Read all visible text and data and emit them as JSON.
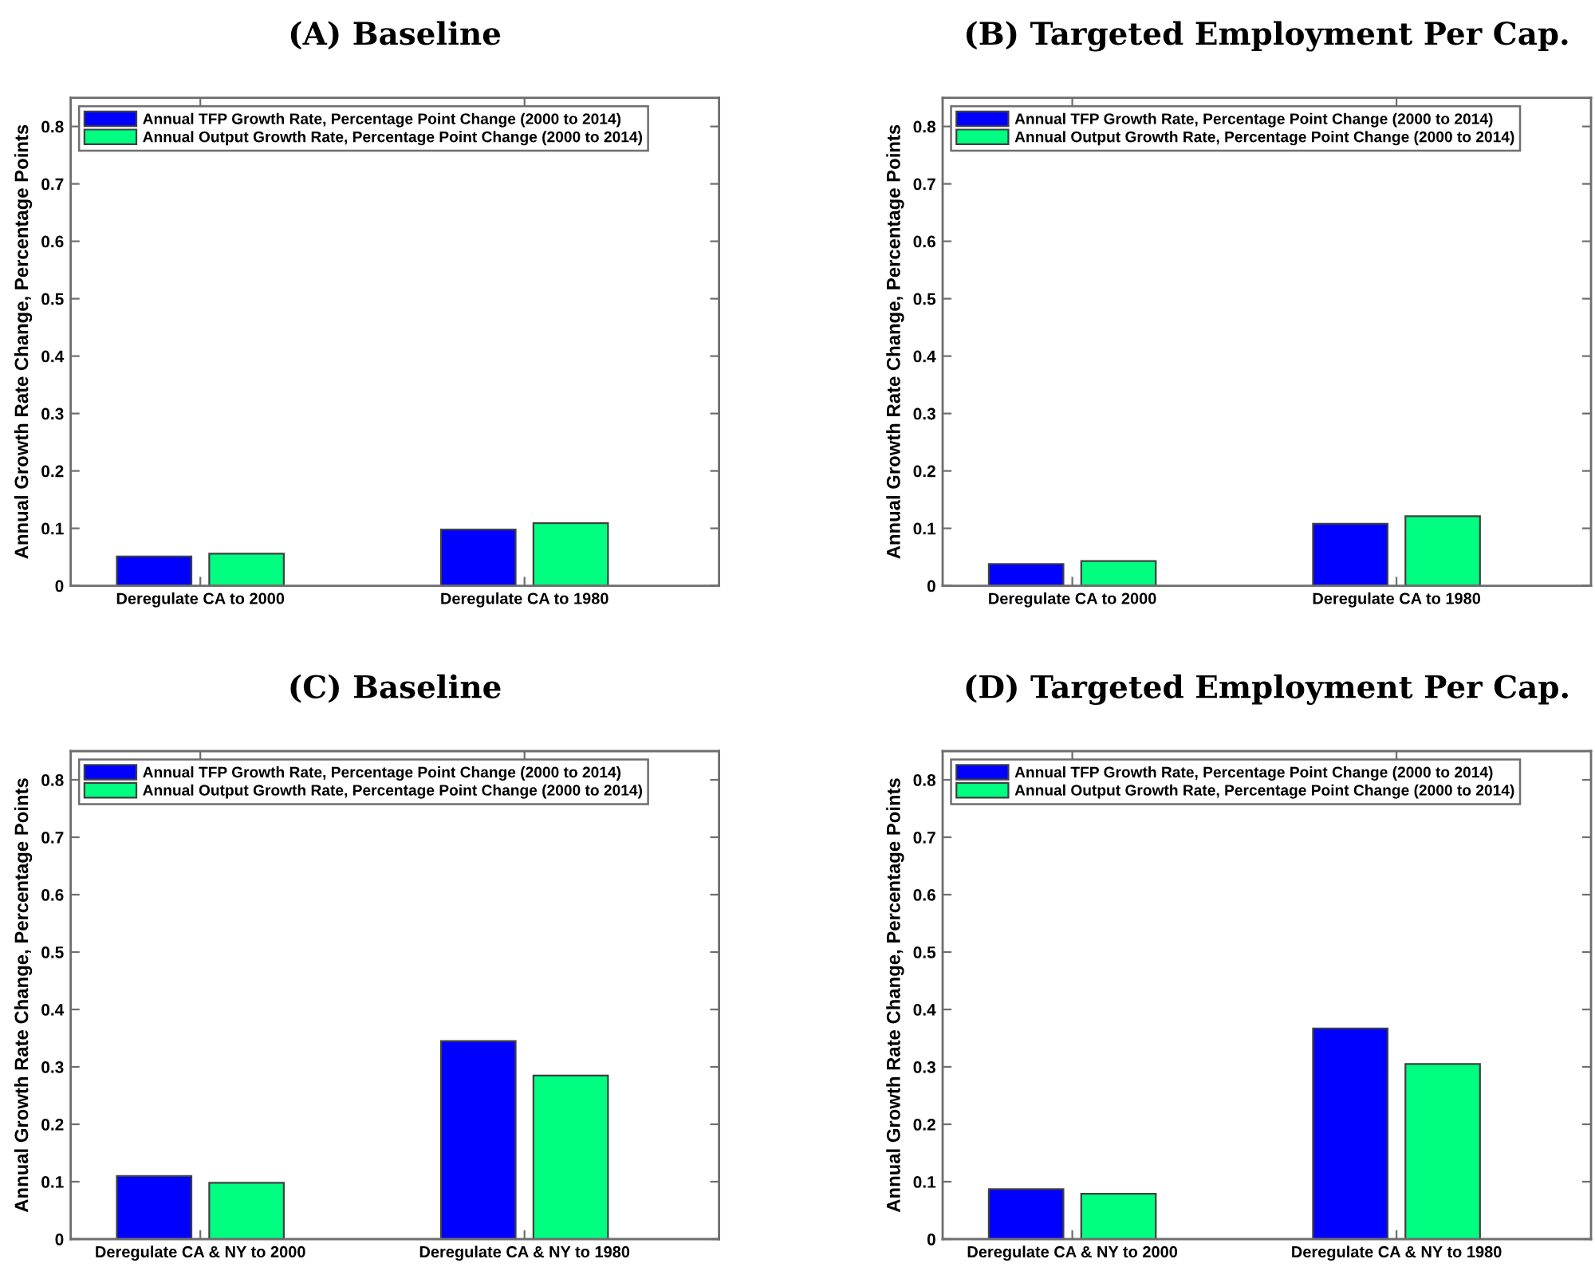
{
  "chart_data": [
    {
      "type": "bar",
      "title": "(A) Baseline",
      "ylabel": "Annual Growth Rate Change, Percentage Points",
      "categories": [
        "Deregulate CA to 2000",
        "Deregulate CA to 1980"
      ],
      "series": [
        {
          "name": "Annual TFP Growth Rate, Percentage Point Change (2000 to 2014)",
          "color": "#0000ff",
          "values": [
            0.051,
            0.098
          ]
        },
        {
          "name": "Annual Output Growth Rate, Percentage Point Change (2000 to 2014)",
          "color": "#00ff80",
          "values": [
            0.056,
            0.109
          ]
        }
      ],
      "ylim": [
        0,
        0.85
      ],
      "yticks": [
        0,
        0.1,
        0.2,
        0.3,
        0.4,
        0.5,
        0.6,
        0.7,
        0.8
      ],
      "legend": "top left",
      "grid": false
    },
    {
      "type": "bar",
      "title": "(B) Targeted Employment Per Cap.",
      "ylabel": "Annual Growth Rate Change, Percentage Points",
      "categories": [
        "Deregulate CA to 2000",
        "Deregulate CA to 1980"
      ],
      "series": [
        {
          "name": "Annual TFP Growth Rate, Percentage Point Change (2000 to 2014)",
          "color": "#0000ff",
          "values": [
            0.038,
            0.108
          ]
        },
        {
          "name": "Annual Output Growth Rate, Percentage Point Change (2000 to 2014)",
          "color": "#00ff80",
          "values": [
            0.043,
            0.121
          ]
        }
      ],
      "ylim": [
        0,
        0.85
      ],
      "yticks": [
        0,
        0.1,
        0.2,
        0.3,
        0.4,
        0.5,
        0.6,
        0.7,
        0.8
      ],
      "legend": "top left",
      "grid": false
    },
    {
      "type": "bar",
      "title": "(C) Baseline",
      "ylabel": "Annual Growth Rate Change, Percentage Points",
      "categories": [
        "Deregulate CA & NY to 2000",
        "Deregulate CA & NY to 1980"
      ],
      "series": [
        {
          "name": "Annual TFP Growth Rate, Percentage Point Change (2000 to 2014)",
          "color": "#0000ff",
          "values": [
            0.11,
            0.345
          ]
        },
        {
          "name": "Annual Output Growth Rate, Percentage Point Change (2000 to 2014)",
          "color": "#00ff80",
          "values": [
            0.098,
            0.285
          ]
        }
      ],
      "ylim": [
        0,
        0.85
      ],
      "yticks": [
        0,
        0.1,
        0.2,
        0.3,
        0.4,
        0.5,
        0.6,
        0.7,
        0.8
      ],
      "legend": "top left",
      "grid": false
    },
    {
      "type": "bar",
      "title": "(D) Targeted Employment Per Cap.",
      "ylabel": "Annual Growth Rate Change, Percentage Points",
      "categories": [
        "Deregulate CA & NY to 2000",
        "Deregulate CA & NY to 1980"
      ],
      "series": [
        {
          "name": "Annual TFP Growth Rate, Percentage Point Change (2000 to 2014)",
          "color": "#0000ff",
          "values": [
            0.087,
            0.367
          ]
        },
        {
          "name": "Annual Output Growth Rate, Percentage Point Change (2000 to 2014)",
          "color": "#00ff80",
          "values": [
            0.079,
            0.305
          ]
        }
      ],
      "ylim": [
        0,
        0.85
      ],
      "yticks": [
        0,
        0.1,
        0.2,
        0.3,
        0.4,
        0.5,
        0.6,
        0.7,
        0.8
      ],
      "legend": "top left",
      "grid": false
    }
  ]
}
